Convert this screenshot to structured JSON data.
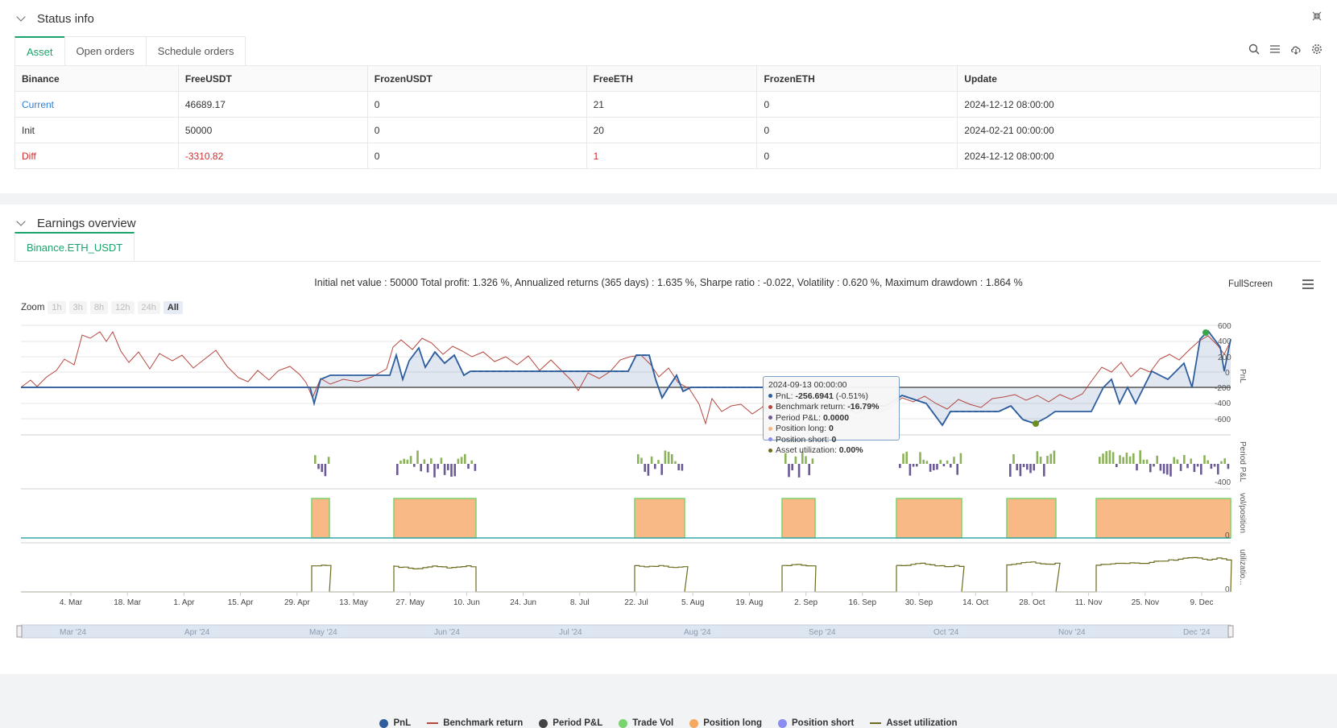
{
  "status": {
    "title": "Status info",
    "tabs": [
      "Asset",
      "Open orders",
      "Schedule orders"
    ],
    "table": {
      "headers": [
        "Binance",
        "FreeUSDT",
        "FrozenUSDT",
        "FreeETH",
        "FrozenETH",
        "Update"
      ],
      "rows": [
        [
          "Current",
          "46689.17",
          "0",
          "21",
          "0",
          "2024-12-12 08:00:00"
        ],
        [
          "Init",
          "50000",
          "0",
          "20",
          "0",
          "2024-02-21 00:00:00"
        ],
        [
          "Diff",
          "-3310.82",
          "0",
          "1",
          "0",
          "2024-12-12 08:00:00"
        ]
      ]
    }
  },
  "earnings": {
    "title": "Earnings overview",
    "tab": "Binance.ETH_USDT",
    "summary": "Initial net value : 50000 Total profit: 1.326 %, Annualized returns (365 days) : 1.635 %, Sharpe ratio : -0.022, Volatility : 0.620 %, Maximum drawdown : 1.864 %",
    "fullscreen": "FullScreen",
    "zoom_label": "Zoom",
    "zoom_buttons": [
      "1h",
      "3h",
      "8h",
      "12h",
      "24h",
      "All"
    ],
    "tooltip": {
      "date": "2024-09-13 00:00:00",
      "pnl_label": "PnL: ",
      "pnl_value": "-256.6941",
      "pnl_pct": " (-0.51%)",
      "bench_label": "Benchmark return: ",
      "bench_value": "-16.79%",
      "period_label": "Period P&L: ",
      "period_value": "0.0000",
      "long_label": "Position long: ",
      "long_value": "0",
      "short_label": "Position short: ",
      "short_value": "0",
      "util_label": "Asset utilization: ",
      "util_value": "0.00%"
    },
    "legend": [
      "PnL",
      "Benchmark return",
      "Period P&L",
      "Trade Vol",
      "Position long",
      "Position short",
      "Asset utilization"
    ],
    "colors": {
      "pnl": "#2e5e9e",
      "benchmark": "#b5473e",
      "period_pos": "#8db35a",
      "period_neg": "#6b5a93",
      "trade_vol": "#7ad36f",
      "position_long": "#f6b37f",
      "position_short": "#8a8cf0",
      "utilization": "#6b6b1f"
    },
    "axes": {
      "pnl_ticks": [
        "600",
        "400",
        "200",
        "0",
        "-200",
        "-400",
        "-600"
      ],
      "pnl_label": "PnL",
      "period_label": "Period P&L",
      "period_tick": "-400",
      "vol_label": "vol/position",
      "vol_tick": "0",
      "util_label": "utilizatio...",
      "util_tick": "0",
      "x_ticks": [
        "4. Mar",
        "18. Mar",
        "1. Apr",
        "15. Apr",
        "29. Apr",
        "13. May",
        "27. May",
        "10. Jun",
        "24. Jun",
        "8. Jul",
        "22. Jul",
        "5. Aug",
        "19. Aug",
        "2. Sep",
        "16. Sep",
        "30. Sep",
        "14. Oct",
        "28. Oct",
        "11. Nov",
        "25. Nov",
        "9. Dec"
      ],
      "navigator_ticks": [
        "Mar '24",
        "Apr '24",
        "May '24",
        "Jun '24",
        "Jul '24",
        "Aug '24",
        "Sep '24",
        "Oct '24",
        "Nov '24",
        "Dec '24"
      ]
    }
  }
}
